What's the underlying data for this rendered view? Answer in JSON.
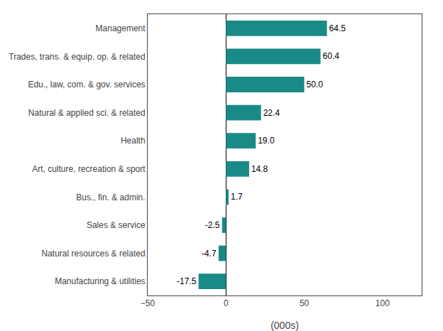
{
  "chart_data": {
    "type": "bar",
    "orientation": "horizontal",
    "categories": [
      "Manufacturing & utilities",
      "Natural resources & related",
      "Sales & service",
      "Bus., fin. & admin.",
      "Art, culture, recreation & sport",
      "Health",
      "Natural & applied sci. & related",
      "Edu., law, com. & gov. services",
      "Trades, trans. & equip. op. & related",
      "Management"
    ],
    "values": [
      -17.5,
      -4.7,
      -2.5,
      1.7,
      14.8,
      19.0,
      22.4,
      50.0,
      60.4,
      64.5
    ],
    "value_labels": [
      "-17.5",
      "-4.7",
      "-2.5",
      "1.7",
      "14.8",
      "19.0",
      "22.4",
      "50.0",
      "60.4",
      "64.5"
    ],
    "data_labels": true,
    "color": "#1a8a87",
    "xlabel": "(000s)",
    "xlim": [
      -50,
      125
    ],
    "xticks": [
      -50,
      0,
      50,
      100
    ],
    "grid": false
  }
}
